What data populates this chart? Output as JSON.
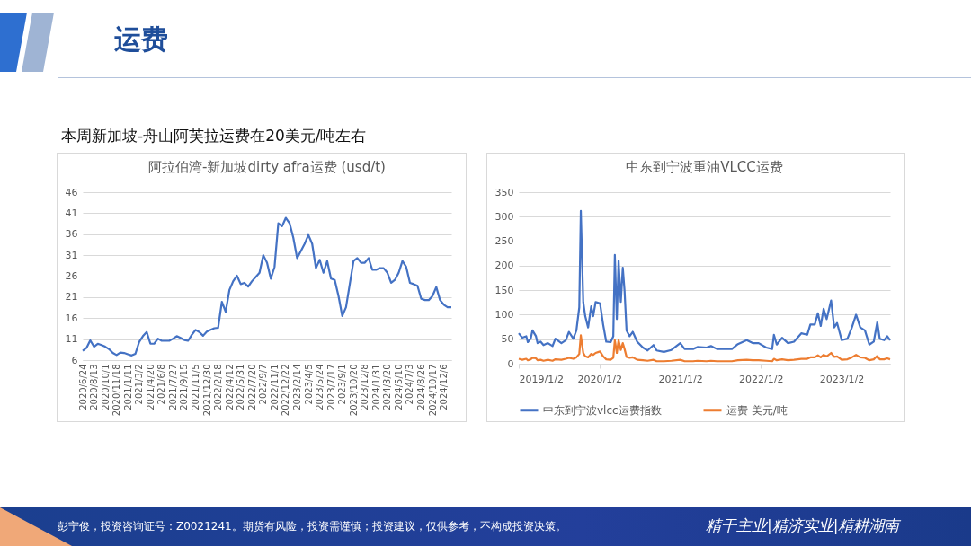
{
  "chart_data": [
    {
      "type": "other",
      "title": "运费",
      "subtitle": "本周新加坡-舟山阿芙拉运费在20美元/吨左右",
      "annotations": [
        "彭宁俊，投资咨询证号：Z0021241。期货有风险，投资需谨慎；投资建议，仅供参考，不构成投资决策。",
        "精干主业|精济实业|精耕湖南"
      ]
    },
    {
      "type": "line",
      "title": "阿拉伯湾-新加坡dirty afra运费 (usd/t)",
      "categories": [
        "2020/6/24",
        null,
        null,
        "2020/8/13",
        null,
        null,
        "2020/10/1",
        null,
        null,
        "2020/11/18",
        null,
        null,
        "2021/1/11",
        null,
        null,
        "2021/3/2",
        null,
        null,
        "2021/4/20",
        null,
        null,
        "2021/6/8",
        null,
        null,
        "2021/7/27",
        null,
        null,
        "2021/9/15",
        null,
        null,
        "2021/11/5",
        null,
        null,
        "2021/12/30",
        null,
        null,
        "2022/2/18",
        null,
        null,
        "2022/4/12",
        null,
        null,
        "2022/5/31",
        null,
        null,
        "2022/7/20",
        null,
        null,
        "2022/9/7",
        null,
        null,
        "2022/11/1",
        null,
        null,
        "2022/12/22",
        null,
        null,
        "2023/2/14",
        null,
        null,
        "2023/4/5",
        null,
        null,
        "2023/5/24",
        null,
        null,
        "2023/7/17",
        null,
        null,
        "2023/9/1",
        null,
        null,
        "2023/10/20",
        null,
        null,
        "2023/12/8",
        null,
        null,
        "2024/1/31",
        null,
        null,
        "2024/3/20",
        null,
        null,
        "2024/5/10",
        null,
        null,
        "2024/7/3",
        null,
        null,
        "2024/8/26",
        null,
        null,
        "2024/10/17",
        null,
        null,
        "2024/12/6",
        null,
        null
      ],
      "values": [
        8.2,
        8.9,
        10.7,
        9.2,
        9.9,
        9.6,
        9.2,
        8.6,
        7.7,
        7.2,
        7.8,
        7.7,
        7.4,
        7.1,
        7.5,
        10.3,
        11.7,
        12.7,
        9.9,
        9.9,
        11.1,
        10.6,
        10.6,
        10.6,
        11.1,
        11.7,
        11.3,
        10.8,
        10.6,
        12.0,
        13.2,
        12.7,
        11.8,
        12.8,
        13.2,
        13.6,
        13.7,
        19.9,
        17.5,
        22.7,
        24.8,
        26.1,
        24.1,
        24.4,
        23.5,
        24.8,
        25.8,
        26.8,
        31.0,
        29.2,
        25.4,
        28.2,
        38.6,
        37.9,
        39.9,
        38.6,
        35.1,
        30.3,
        32.0,
        33.7,
        35.8,
        33.7,
        27.9,
        29.9,
        26.8,
        29.6,
        25.4,
        25.1,
        21.3,
        16.5,
        18.6,
        24.1,
        29.6,
        30.3,
        29.2,
        29.2,
        30.3,
        27.5,
        27.5,
        27.9,
        27.9,
        26.8,
        24.4,
        25.1,
        26.8,
        29.6,
        28.2,
        24.4,
        24.1,
        23.7,
        20.6,
        20.3,
        20.3,
        21.3,
        23.4,
        20.3,
        19.2,
        18.6,
        18.6
      ],
      "color": "#4472c4",
      "ylim": [
        6,
        46
      ],
      "yticks": [
        6,
        11,
        16,
        21,
        26,
        31,
        36,
        41,
        46
      ],
      "grid": "y"
    },
    {
      "type": "line",
      "title": "中东到宁波重油VLCC运费",
      "x": [
        "2019-01-02",
        "2019-01-18",
        "2019-02-05",
        "2019-02-12",
        "2019-02-25",
        "2019-03-05",
        "2019-03-21",
        "2019-03-28",
        "2019-04-11",
        "2019-04-24",
        "2019-05-14",
        "2019-06-04",
        "2019-06-17",
        "2019-07-14",
        "2019-08-03",
        "2019-08-17",
        "2019-09-06",
        "2019-09-20",
        "2019-10-03",
        "2019-10-10",
        "2019-10-21",
        "2019-10-30",
        "2019-11-12",
        "2019-11-26",
        "2019-12-05",
        "2019-12-16",
        "2020-01-05",
        "2020-01-19",
        "2020-02-02",
        "2020-02-22",
        "2020-03-05",
        "2020-03-12",
        "2020-03-21",
        "2020-03-29",
        "2020-04-08",
        "2020-04-17",
        "2020-04-25",
        "2020-05-04",
        "2020-05-18",
        "2020-06-01",
        "2020-06-21",
        "2020-07-17",
        "2020-08-07",
        "2020-09-03",
        "2020-09-17",
        "2020-10-20",
        "2020-11-23",
        "2021-01-02",
        "2021-01-22",
        "2021-03-01",
        "2021-03-21",
        "2021-05-01",
        "2021-05-21",
        "2021-06-17",
        "2021-08-24",
        "2021-09-20",
        "2021-10-30",
        "2021-11-26",
        "2021-12-23",
        "2022-01-26",
        "2022-02-22",
        "2022-03-02",
        "2022-03-15",
        "2022-04-08",
        "2022-05-05",
        "2022-06-01",
        "2022-07-04",
        "2022-07-31",
        "2022-08-14",
        "2022-09-03",
        "2022-09-17",
        "2022-09-30",
        "2022-10-13",
        "2022-10-27",
        "2022-11-16",
        "2022-11-30",
        "2022-12-13",
        "2023-01-03",
        "2023-01-29",
        "2023-02-18",
        "2023-03-09",
        "2023-03-28",
        "2023-04-18",
        "2023-05-08",
        "2023-05-28",
        "2023-06-13",
        "2023-06-24",
        "2023-07-14",
        "2023-07-28",
        "2023-08-10"
      ],
      "series": [
        {
          "name": "中东到宁波vlcc运费指数",
          "color": "#4472c4",
          "values": [
            62,
            53,
            56,
            44,
            51,
            68,
            56,
            42,
            45,
            38,
            42,
            36,
            51,
            42,
            48,
            65,
            51,
            68,
            115,
            312,
            126,
            97,
            74,
            117,
            97,
            126,
            123,
            80,
            45,
            44,
            56,
            222,
            91,
            210,
            126,
            196,
            149,
            68,
            56,
            65,
            45,
            33,
            27,
            38,
            27,
            24,
            28,
            42,
            30,
            30,
            34,
            33,
            36,
            30,
            30,
            40,
            48,
            42,
            42,
            33,
            30,
            59,
            39,
            53,
            42,
            45,
            62,
            59,
            80,
            80,
            103,
            77,
            112,
            91,
            129,
            74,
            83,
            48,
            51,
            74,
            100,
            74,
            68,
            39,
            45,
            85,
            51,
            48,
            56,
            48
          ]
        },
        {
          "name": "运费 美元/吨",
          "color": "#ed7d31",
          "values": [
            10,
            8,
            10,
            7,
            9,
            12,
            11,
            7,
            8,
            6,
            8,
            6,
            9,
            8,
            10,
            12,
            10,
            13,
            20,
            58,
            22,
            15,
            13,
            20,
            18,
            22,
            25,
            15,
            9,
            8,
            12,
            48,
            22,
            48,
            28,
            42,
            30,
            14,
            12,
            13,
            8,
            7,
            6,
            8,
            5,
            5,
            6,
            8,
            5,
            5,
            6,
            5,
            6,
            5,
            5,
            7,
            8,
            7,
            7,
            6,
            5,
            10,
            7,
            9,
            7,
            8,
            10,
            10,
            13,
            13,
            17,
            13,
            18,
            15,
            22,
            14,
            15,
            8,
            9,
            13,
            18,
            13,
            12,
            7,
            9,
            16,
            9,
            9,
            11,
            9
          ]
        }
      ],
      "xlim": [
        "2019-01-02",
        "2023-08-10"
      ],
      "xticks": [
        {
          "value": "2019-01-02",
          "label": "2019/1/2"
        },
        {
          "value": "2020-01-02",
          "label": "2020/1/2"
        },
        {
          "value": "2021-01-02",
          "label": "2021/1/2"
        },
        {
          "value": "2022-01-02",
          "label": "2022/1/2"
        },
        {
          "value": "2023-01-02",
          "label": "2023/1/2"
        }
      ],
      "ylim": [
        0,
        350
      ],
      "yticks": [
        0,
        50,
        100,
        150,
        200,
        250,
        300,
        350
      ],
      "grid": "y",
      "legend": "bottom"
    }
  ]
}
